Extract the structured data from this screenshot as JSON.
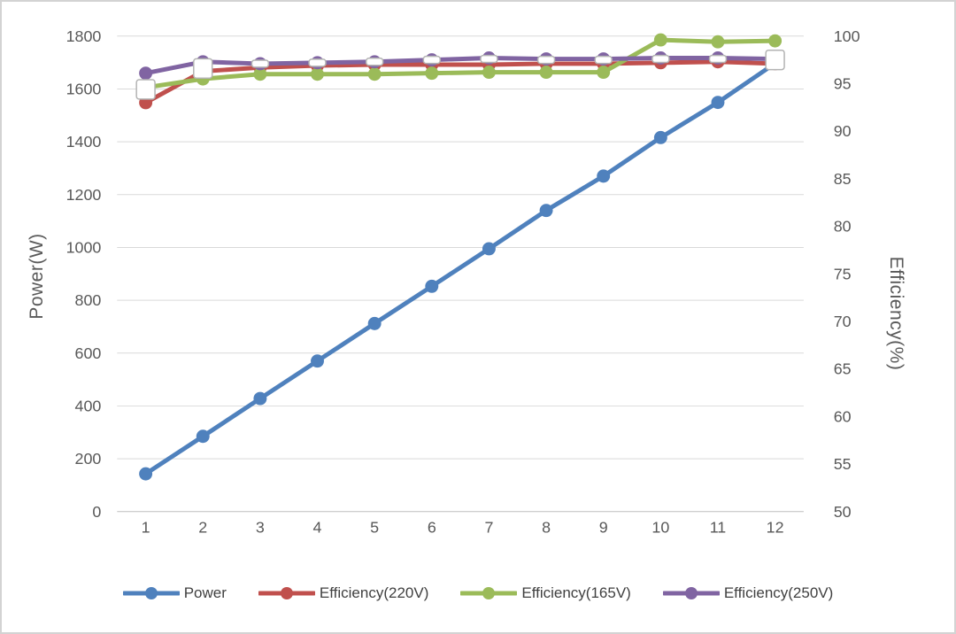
{
  "chart_data": {
    "type": "line",
    "title": "",
    "xlabel": "",
    "x_categories": [
      "1",
      "2",
      "3",
      "4",
      "5",
      "6",
      "7",
      "8",
      "9",
      "10",
      "11",
      "12"
    ],
    "left_axis": {
      "title": "Power(W)",
      "min": 0,
      "max": 1800,
      "step": 200,
      "tick_labels": [
        "0",
        "200",
        "400",
        "600",
        "800",
        "1000",
        "1200",
        "1400",
        "1600",
        "1800"
      ]
    },
    "right_axis": {
      "title": "Efficiency(%)",
      "min": 50,
      "max": 100,
      "step": 5,
      "tick_labels": [
        "50",
        "55",
        "60",
        "65",
        "70",
        "75",
        "80",
        "85",
        "90",
        "95",
        "100"
      ]
    },
    "grid": true,
    "colors": {
      "gridline": "#d9d9d9",
      "axis_line": "#bfbfbf",
      "tick_text": "#595959",
      "frame_border": "#d3d3d3",
      "blue": "#4F81BD",
      "red": "#C0504D",
      "green": "#9BBB59",
      "purple": "#8064A2"
    },
    "series": [
      {
        "name": "Power",
        "axis": "left",
        "color": "#4F81BD",
        "marker": "circle",
        "values": [
          143,
          285,
          428,
          570,
          712,
          853,
          995,
          1140,
          1270,
          1416,
          1549,
          1697
        ]
      },
      {
        "name": "Efficiency(220V)",
        "axis": "right",
        "color": "#C0504D",
        "marker": "circle",
        "values": [
          93.0,
          96.3,
          96.7,
          96.9,
          97.0,
          97.0,
          97.0,
          97.1,
          97.1,
          97.2,
          97.3,
          97.1
        ]
      },
      {
        "name": "Efficiency(165V)",
        "axis": "right",
        "color": "#9BBB59",
        "marker": "circle",
        "values": [
          94.6,
          95.5,
          96.0,
          96.0,
          96.0,
          96.1,
          96.2,
          96.2,
          96.2,
          99.6,
          99.4,
          99.5
        ]
      },
      {
        "name": "Efficiency(250V)",
        "axis": "right",
        "color": "#8064A2",
        "marker": "circle",
        "values": [
          96.1,
          97.3,
          97.1,
          97.2,
          97.3,
          97.5,
          97.7,
          97.6,
          97.6,
          97.7,
          97.7,
          97.6
        ]
      },
      {
        "name": "unlabeled-white-square-markers",
        "axis": "right",
        "color": "#FFFFFF",
        "marker_stroke": "#b3b3b3",
        "line": false,
        "in_legend": false,
        "marker": "square",
        "marker_shapes": [
          "square",
          "square",
          "dash",
          "dash",
          "dash",
          "dash",
          "dash",
          "dash",
          "dash",
          "dash",
          "dash",
          "square"
        ],
        "values": [
          94.4,
          96.6,
          97.1,
          97.2,
          97.3,
          97.5,
          97.6,
          97.5,
          97.5,
          97.6,
          97.6,
          97.5
        ]
      }
    ],
    "legend": {
      "position": "bottom",
      "entries": [
        "Power",
        "Efficiency(220V)",
        "Efficiency(165V)",
        "Efficiency(250V)"
      ]
    }
  }
}
